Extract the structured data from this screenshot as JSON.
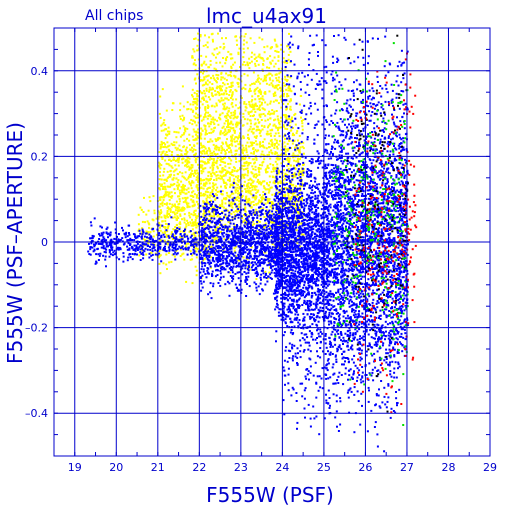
{
  "chart_data": {
    "type": "scatter",
    "title": "lmc_u4ax91",
    "subtitle": "All chips",
    "xlabel": "F555W (PSF)",
    "ylabel": "F555W (PSF–APERTURE)",
    "xlim": [
      18.5,
      29
    ],
    "ylim": [
      -0.5,
      0.5
    ],
    "grid": true,
    "x_ticks": [
      19,
      20,
      21,
      22,
      23,
      24,
      25,
      26,
      27,
      28,
      29
    ],
    "y_ticks": [
      -0.4,
      -0.2,
      0,
      0.2,
      0.4
    ],
    "y_tick_labels": [
      "–0.4",
      "–0.2",
      "0",
      "0.2",
      "0.4"
    ],
    "colors": {
      "axes": "#0000cc",
      "blue": "#0000ff",
      "yellow": "#ffff00",
      "green": "#00e000",
      "red": "#ff0000",
      "black": "#000000"
    },
    "series": [
      {
        "color": "blue",
        "description_only_for_density": "bulk of stars",
        "clusters": [
          {
            "x_range": [
              19.3,
              22.0
            ],
            "y_center": 0.0,
            "y_spread": 0.02,
            "count": 450
          },
          {
            "x_range": [
              22.0,
              24.0
            ],
            "y_center": 0.0,
            "y_spread": 0.05,
            "count": 1300
          },
          {
            "x_range": [
              23.8,
              25.0
            ],
            "y_center": -0.02,
            "y_spread": 0.09,
            "count": 1800
          },
          {
            "x_range": [
              25.0,
              27.0
            ],
            "y_center": 0.0,
            "y_spread": 0.14,
            "count": 2800
          },
          {
            "x_range": [
              24.0,
              27.0
            ],
            "y_center": 0.25,
            "y_spread": 0.14,
            "count": 600
          },
          {
            "x_range": [
              24.0,
              26.8
            ],
            "y_center": -0.28,
            "y_spread": 0.08,
            "count": 350
          }
        ]
      },
      {
        "color": "yellow",
        "clusters": [
          {
            "x_range": [
              21.0,
              24.5
            ],
            "y_center": 0.14,
            "y_spread": 0.09,
            "count": 2000
          },
          {
            "x_range": [
              21.8,
              24.2
            ],
            "y_center": 0.35,
            "y_spread": 0.09,
            "count": 900
          },
          {
            "x_range": [
              20.5,
              22.5
            ],
            "y_center": 0.04,
            "y_spread": 0.04,
            "count": 250
          }
        ]
      },
      {
        "color": "green",
        "clusters": [
          {
            "x_range": [
              25.2,
              27.0
            ],
            "y_center": 0.05,
            "y_spread": 0.16,
            "count": 350
          }
        ]
      },
      {
        "color": "red",
        "clusters": [
          {
            "x_range": [
              25.7,
              27.2
            ],
            "y_center": 0.05,
            "y_spread": 0.18,
            "count": 280
          }
        ]
      },
      {
        "color": "black",
        "clusters": [
          {
            "x_range": [
              25.5,
              27.0
            ],
            "y_center": 0.1,
            "y_spread": 0.18,
            "count": 200
          }
        ]
      }
    ]
  }
}
